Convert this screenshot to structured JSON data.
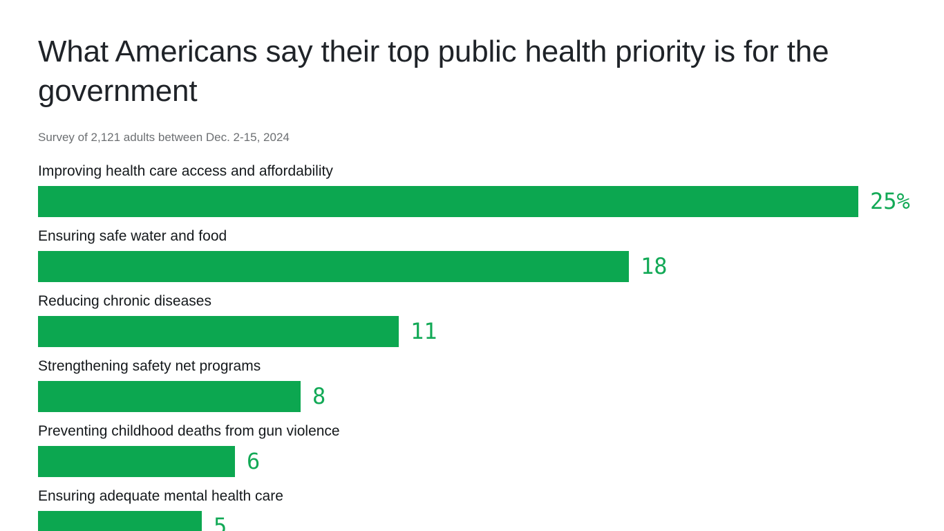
{
  "header": {
    "title": "What Americans say their top public health priority is for the government",
    "subtitle": "Survey of 2,121 adults between Dec. 2-15, 2024"
  },
  "chart_data": {
    "type": "bar",
    "orientation": "horizontal",
    "title": "What Americans say their top public health priority is for the government",
    "subtitle": "Survey of 2,121 adults between Dec. 2-15, 2024",
    "categories": [
      "Improving health care access and affordability",
      "Ensuring safe water and food",
      "Reducing chronic diseases",
      "Strengthening safety net programs",
      "Preventing childhood deaths from gun violence",
      "Ensuring adequate mental health care"
    ],
    "values": [
      25,
      18,
      11,
      8,
      6,
      5
    ],
    "value_labels": [
      "25%",
      "18",
      "11",
      "8",
      "6",
      "5"
    ],
    "unit": "percent",
    "xlim": [
      0,
      25
    ],
    "grid": false,
    "legend": false,
    "label_position": "above-bar",
    "value_position": "right-of-bar",
    "bar_color": "#0ca750",
    "value_color": "#12a956",
    "title_color": "#1f2328",
    "label_color": "#14181b",
    "subtitle_color": "#6c6f72",
    "background_color": "#ffffff"
  }
}
